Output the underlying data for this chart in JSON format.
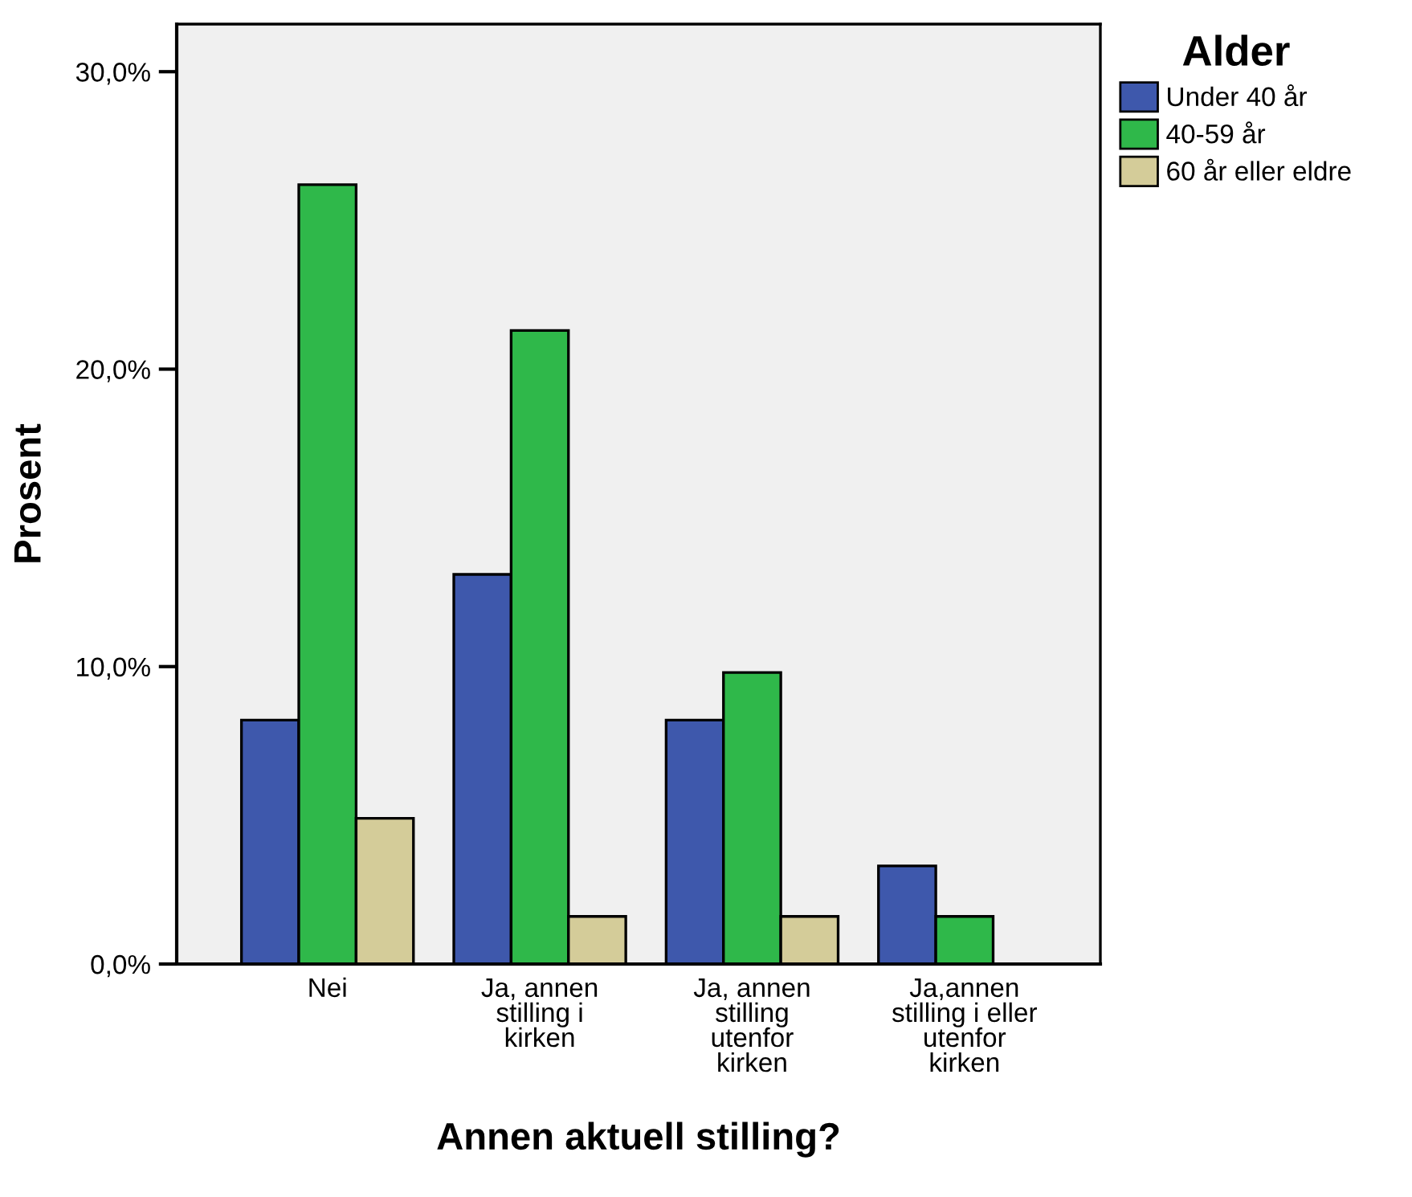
{
  "chart_data": {
    "type": "bar",
    "xlabel": "Annen aktuell stilling?",
    "ylabel": "Prosent",
    "legend_title": "Alder",
    "categories": [
      "Nei",
      "Ja, annen\nstilling i\nkirken",
      "Ja, annen\nstilling\nutenfor\nkirken",
      "Ja,annen\nstilling i eller\nutenfor\nkirken"
    ],
    "series": [
      {
        "name": "Under 40 år",
        "color": "#3e58ac",
        "values": [
          8.2,
          13.1,
          8.2,
          3.3
        ]
      },
      {
        "name": "40-59 år",
        "color": "#2fb84a",
        "values": [
          26.2,
          21.3,
          9.8,
          1.6
        ]
      },
      {
        "name": "60 år eller eldre",
        "color": "#d4cc99",
        "values": [
          4.9,
          1.6,
          1.6,
          null
        ]
      }
    ],
    "ylim": [
      0,
      31.6
    ],
    "yticks": [
      {
        "value": 0,
        "label": "0,0%"
      },
      {
        "value": 10,
        "label": "10,0%"
      },
      {
        "value": 20,
        "label": "20,0%"
      },
      {
        "value": 30,
        "label": "30,0%"
      }
    ],
    "grid": false,
    "legend": "top right"
  }
}
